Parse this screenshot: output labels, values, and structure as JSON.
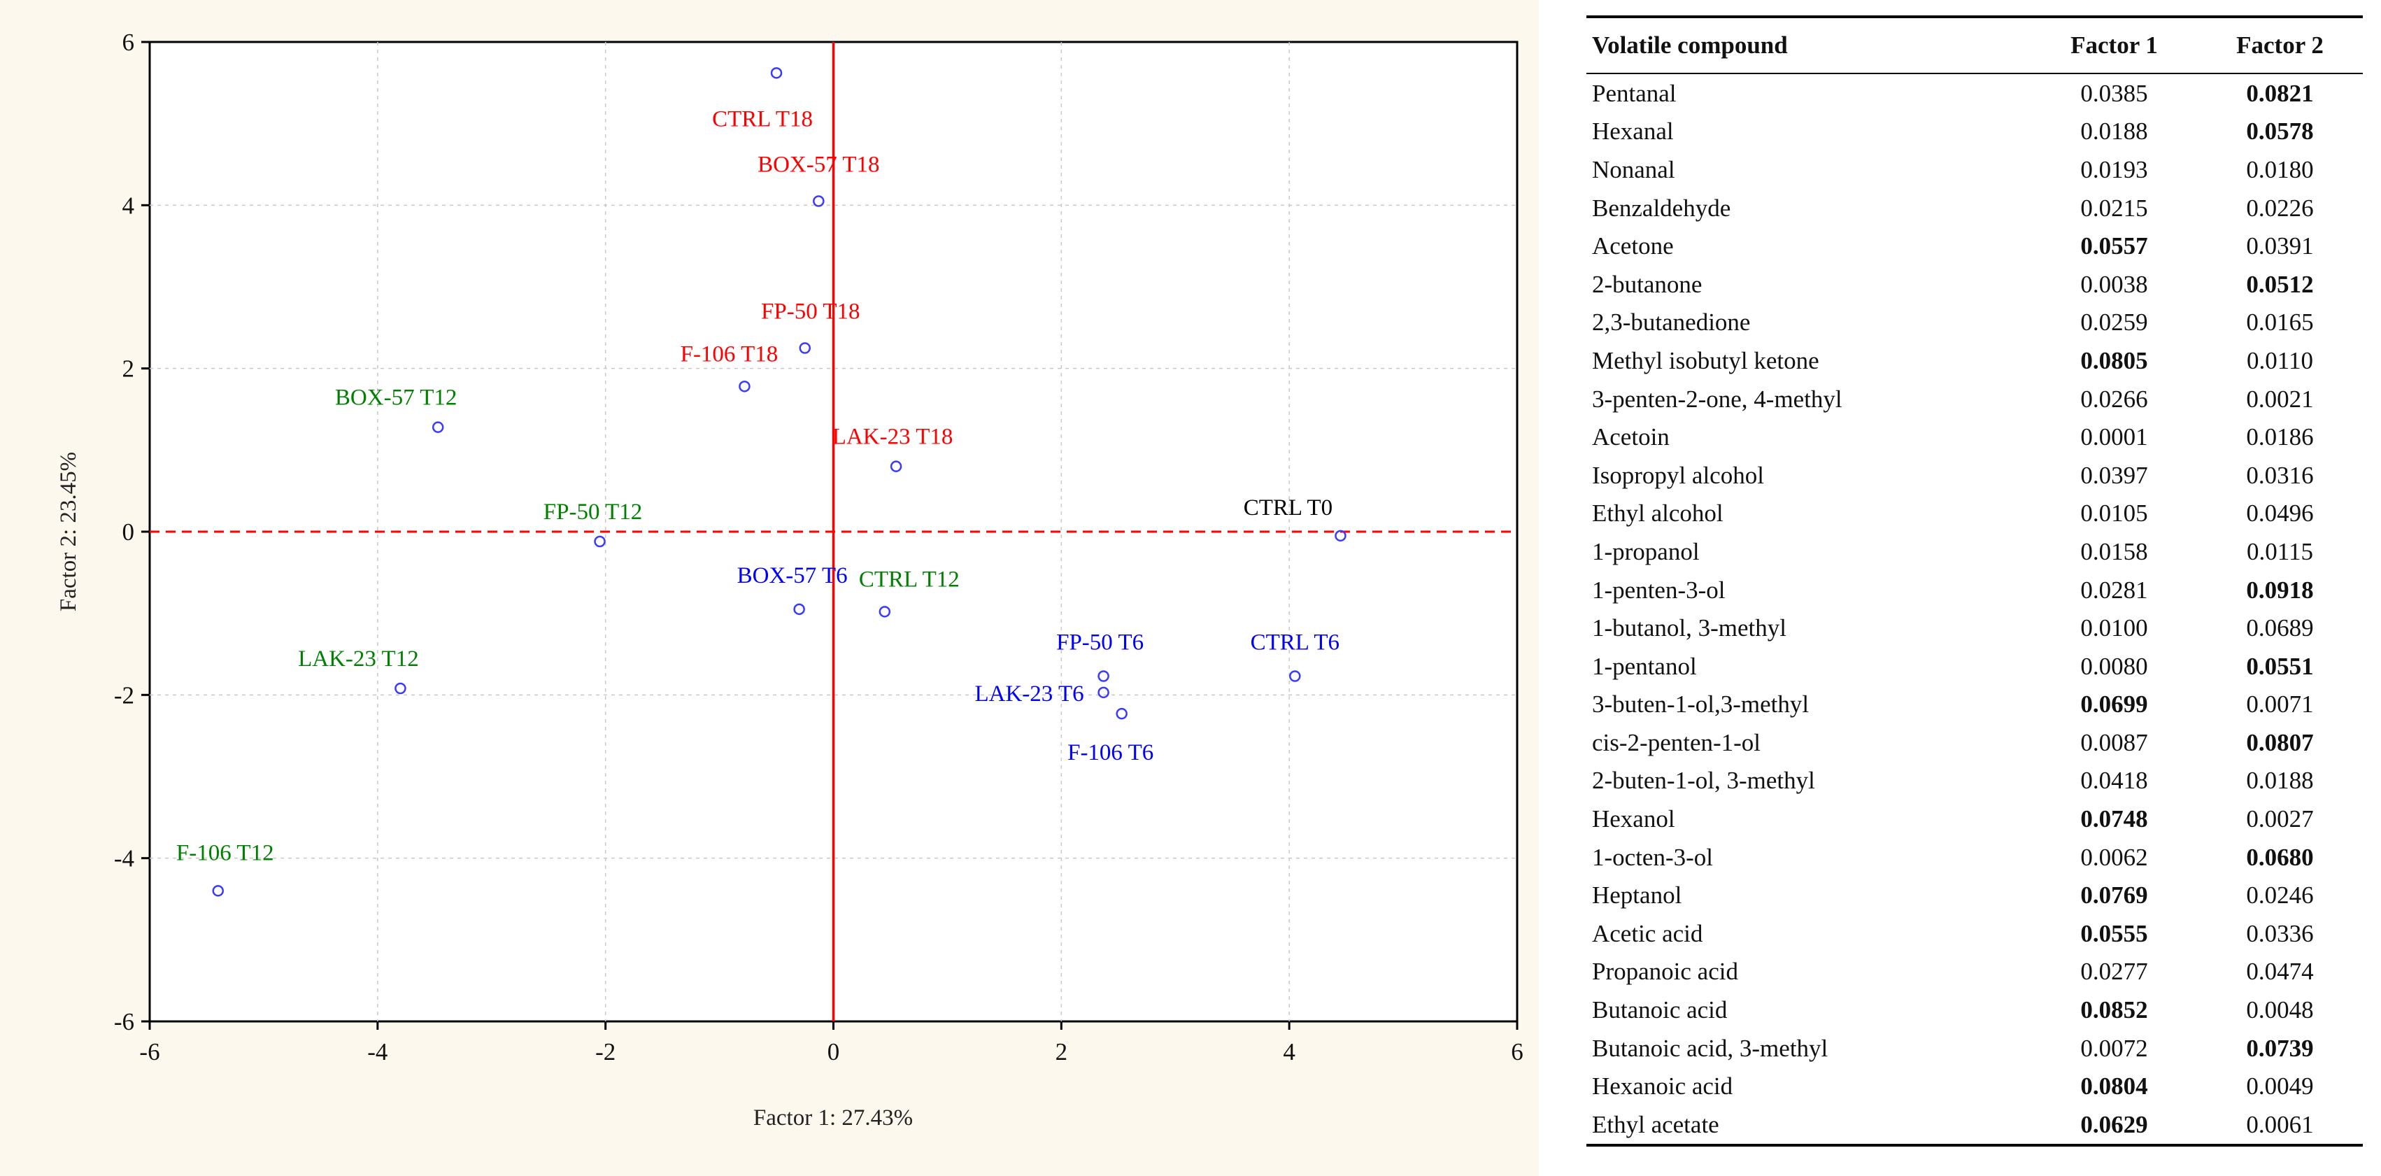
{
  "chart_data": {
    "type": "scatter",
    "xlabel": "Factor 1: 27.43%",
    "ylabel": "Factor 2: 23.45%",
    "xlim": [
      -6,
      6
    ],
    "ylim": [
      -6,
      6
    ],
    "xticks": [
      -6,
      -4,
      -2,
      0,
      2,
      4,
      6
    ],
    "yticks": [
      -6,
      -4,
      -2,
      0,
      2,
      4,
      6
    ],
    "grid": true,
    "colors": {
      "T0": "#000000",
      "T6": "#0000ff",
      "T12": "#008000",
      "T18": "#ff0000",
      "point": "#3a3aff",
      "axis_line": "#ff0000",
      "background": "#fdf8ee"
    },
    "points": [
      {
        "label": "CTRL T0",
        "group": "T0",
        "x": 4.45,
        "y": -0.05
      },
      {
        "label": "CTRL T6",
        "group": "T6",
        "x": 4.05,
        "y": -1.77
      },
      {
        "label": "FP-50 T6",
        "group": "T6",
        "x": 2.37,
        "y": -1.77
      },
      {
        "label": "LAK-23 T6",
        "group": "T6",
        "x": 2.37,
        "y": -1.97
      },
      {
        "label": "F-106 T6",
        "group": "T6",
        "x": 2.53,
        "y": -2.23
      },
      {
        "label": "BOX-57 T6",
        "group": "T6",
        "x": -0.3,
        "y": -0.95
      },
      {
        "label": "CTRL T12",
        "group": "T12",
        "x": 0.45,
        "y": -0.98
      },
      {
        "label": "FP-50 T12",
        "group": "T12",
        "x": -2.05,
        "y": -0.12
      },
      {
        "label": "BOX-57 T12",
        "group": "T12",
        "x": -3.47,
        "y": 1.28
      },
      {
        "label": "LAK-23 T12",
        "group": "T12",
        "x": -3.8,
        "y": -1.92
      },
      {
        "label": "F-106 T12",
        "group": "T12",
        "x": -5.4,
        "y": -4.4
      },
      {
        "label": "CTRL T18",
        "group": "T18",
        "x": -0.5,
        "y": 5.62
      },
      {
        "label": "BOX-57 T18",
        "group": "T18",
        "x": -0.13,
        "y": 4.05
      },
      {
        "label": "FP-50 T18",
        "group": "T18",
        "x": -0.25,
        "y": 2.25
      },
      {
        "label": "F-106 T18",
        "group": "T18",
        "x": -0.78,
        "y": 1.78
      },
      {
        "label": "LAK-23 T18",
        "group": "T18",
        "x": 0.55,
        "y": 0.8
      }
    ]
  },
  "table": {
    "headers": [
      "Volatile compound",
      "Factor 1",
      "Factor 2"
    ],
    "rows": [
      {
        "name": "Pentanal",
        "f1": "0.0385",
        "f2": "0.0821",
        "bold": "f2"
      },
      {
        "name": "Hexanal",
        "f1": "0.0188",
        "f2": "0.0578",
        "bold": "f2"
      },
      {
        "name": "Nonanal",
        "f1": "0.0193",
        "f2": "0.0180",
        "bold": ""
      },
      {
        "name": "Benzaldehyde",
        "f1": "0.0215",
        "f2": "0.0226",
        "bold": ""
      },
      {
        "name": "Acetone",
        "f1": "0.0557",
        "f2": "0.0391",
        "bold": "f1"
      },
      {
        "name": "2-butanone",
        "f1": "0.0038",
        "f2": "0.0512",
        "bold": "f2"
      },
      {
        "name": "2,3-butanedione",
        "f1": "0.0259",
        "f2": "0.0165",
        "bold": ""
      },
      {
        "name": "Methyl isobutyl ketone",
        "f1": "0.0805",
        "f2": "0.0110",
        "bold": "f1"
      },
      {
        "name": "3-penten-2-one, 4-methyl",
        "f1": "0.0266",
        "f2": "0.0021",
        "bold": ""
      },
      {
        "name": "Acetoin",
        "f1": "0.0001",
        "f2": "0.0186",
        "bold": ""
      },
      {
        "name": "Isopropyl alcohol",
        "f1": "0.0397",
        "f2": "0.0316",
        "bold": ""
      },
      {
        "name": "Ethyl alcohol",
        "f1": "0.0105",
        "f2": "0.0496",
        "bold": ""
      },
      {
        "name": "1-propanol",
        "f1": "0.0158",
        "f2": "0.0115",
        "bold": ""
      },
      {
        "name": "1-penten-3-ol",
        "f1": "0.0281",
        "f2": "0.0918",
        "bold": "f2"
      },
      {
        "name": "1-butanol, 3-methyl",
        "f1": "0.0100",
        "f2": "0.0689",
        "bold": ""
      },
      {
        "name": "1-pentanol",
        "f1": "0.0080",
        "f2": "0.0551",
        "bold": "f2"
      },
      {
        "name": "3-buten-1-ol,3-methyl",
        "f1": "0.0699",
        "f2": "0.0071",
        "bold": "f1"
      },
      {
        "name": "cis-2-penten-1-ol",
        "f1": "0.0087",
        "f2": "0.0807",
        "bold": "f2"
      },
      {
        "name": "2-buten-1-ol, 3-methyl",
        "f1": "0.0418",
        "f2": "0.0188",
        "bold": ""
      },
      {
        "name": "Hexanol",
        "f1": "0.0748",
        "f2": "0.0027",
        "bold": "f1"
      },
      {
        "name": "1-octen-3-ol",
        "f1": "0.0062",
        "f2": "0.0680",
        "bold": "f2"
      },
      {
        "name": "Heptanol",
        "f1": "0.0769",
        "f2": "0.0246",
        "bold": "f1"
      },
      {
        "name": "Acetic acid",
        "f1": "0.0555",
        "f2": "0.0336",
        "bold": "f1"
      },
      {
        "name": "Propanoic acid",
        "f1": "0.0277",
        "f2": "0.0474",
        "bold": ""
      },
      {
        "name": "Butanoic acid",
        "f1": "0.0852",
        "f2": "0.0048",
        "bold": "f1"
      },
      {
        "name": "Butanoic acid, 3-methyl",
        "f1": "0.0072",
        "f2": "0.0739",
        "bold": "f2"
      },
      {
        "name": "Hexanoic acid",
        "f1": "0.0804",
        "f2": "0.0049",
        "bold": "f1"
      },
      {
        "name": "Ethyl acetate",
        "f1": "0.0629",
        "f2": "0.0061",
        "bold": "f1"
      }
    ]
  }
}
